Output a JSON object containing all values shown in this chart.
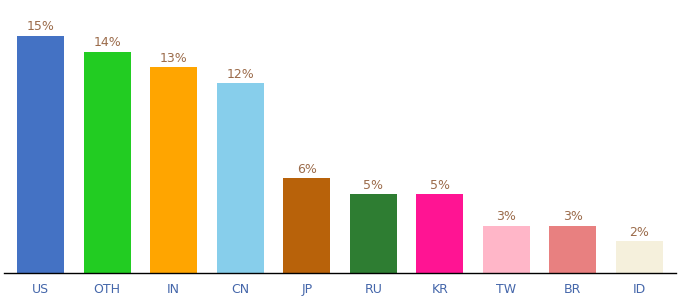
{
  "categories": [
    "US",
    "OTH",
    "IN",
    "CN",
    "JP",
    "RU",
    "KR",
    "TW",
    "BR",
    "ID"
  ],
  "values": [
    15,
    14,
    13,
    12,
    6,
    5,
    5,
    3,
    3,
    2
  ],
  "bar_colors": [
    "#4472C4",
    "#22CC22",
    "#FFA500",
    "#87CEEB",
    "#B8620A",
    "#2E7D32",
    "#FF1493",
    "#FFB6C8",
    "#E88080",
    "#F5F0DC"
  ],
  "label_color": "#9B6B4A",
  "ylim": [
    0,
    17
  ],
  "background_color": "#ffffff",
  "label_fontsize": 9,
  "tick_fontsize": 9,
  "bar_width": 0.7
}
